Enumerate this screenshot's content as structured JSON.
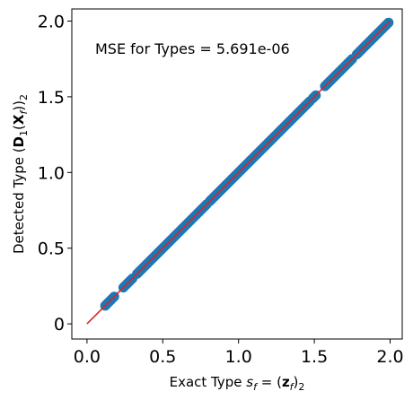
{
  "chart_data": {
    "type": "scatter",
    "xlabel": "Exact Type s_f = (z_f)_2",
    "ylabel": "Detected Type (D_1(X_f))_2",
    "annotation": "MSE for Types = 5.691e-06",
    "xlim": [
      -0.1,
      2.08
    ],
    "ylim": [
      -0.1,
      2.08
    ],
    "x_ticks": [
      0.0,
      0.5,
      1.0,
      1.5,
      2.0
    ],
    "y_ticks": [
      0,
      0.5,
      1.0,
      1.5,
      2.0
    ],
    "x_tick_labels": [
      "0.0",
      "0.5",
      "1.0",
      "1.5",
      "2.0"
    ],
    "y_tick_labels": [
      "0",
      "0.5",
      "1.0",
      "1.5",
      "2.0"
    ],
    "grid": false,
    "reference_line": {
      "from": [
        0.0,
        0.0
      ],
      "to": [
        2.0,
        2.0
      ],
      "color": "#d62728"
    },
    "point_color": "#1f77b4",
    "series": [
      {
        "x": [
          0.12,
          0.13,
          0.14,
          0.15,
          0.16,
          0.17,
          0.18,
          0.24,
          0.25,
          0.26,
          0.27,
          0.28,
          0.29,
          0.3,
          0.33,
          0.34,
          0.35,
          0.36,
          0.37,
          0.38,
          0.39,
          0.4,
          0.41,
          0.42,
          0.43,
          0.44,
          0.45,
          0.46,
          0.47,
          0.48,
          0.49,
          0.5,
          0.51,
          0.52,
          0.53,
          0.54,
          0.55,
          0.56,
          0.57,
          0.58,
          0.59,
          0.6,
          0.61,
          0.62,
          0.63,
          0.64,
          0.65,
          0.66,
          0.67,
          0.68,
          0.69,
          0.7,
          0.71,
          0.72,
          0.73,
          0.74,
          0.75,
          0.76,
          0.77,
          0.78,
          0.79,
          0.81,
          0.82,
          0.83,
          0.84,
          0.85,
          0.86,
          0.87,
          0.88,
          0.89,
          0.9,
          0.91,
          0.92,
          0.93,
          0.94,
          0.95,
          0.96,
          0.97,
          0.98,
          0.99,
          1.0,
          1.01,
          1.02,
          1.03,
          1.04,
          1.05,
          1.06,
          1.07,
          1.08,
          1.09,
          1.1,
          1.11,
          1.12,
          1.13,
          1.14,
          1.15,
          1.16,
          1.17,
          1.18,
          1.19,
          1.2,
          1.21,
          1.22,
          1.23,
          1.24,
          1.25,
          1.26,
          1.27,
          1.28,
          1.29,
          1.3,
          1.31,
          1.32,
          1.33,
          1.34,
          1.35,
          1.36,
          1.37,
          1.38,
          1.39,
          1.4,
          1.41,
          1.42,
          1.43,
          1.44,
          1.45,
          1.46,
          1.47,
          1.49,
          1.5,
          1.51,
          1.57,
          1.58,
          1.59,
          1.6,
          1.61,
          1.62,
          1.63,
          1.64,
          1.65,
          1.66,
          1.67,
          1.68,
          1.69,
          1.7,
          1.71,
          1.72,
          1.73,
          1.74,
          1.75,
          1.78,
          1.79,
          1.8,
          1.81,
          1.82,
          1.83,
          1.84,
          1.85,
          1.86,
          1.87,
          1.88,
          1.89,
          1.9,
          1.91,
          1.92,
          1.93,
          1.94,
          1.95,
          1.96,
          1.97,
          1.98,
          1.99
        ],
        "y": [
          0.12,
          0.13,
          0.14,
          0.15,
          0.16,
          0.17,
          0.18,
          0.24,
          0.25,
          0.26,
          0.27,
          0.28,
          0.29,
          0.3,
          0.33,
          0.34,
          0.35,
          0.36,
          0.37,
          0.38,
          0.39,
          0.4,
          0.41,
          0.42,
          0.43,
          0.44,
          0.45,
          0.46,
          0.47,
          0.48,
          0.49,
          0.5,
          0.51,
          0.52,
          0.53,
          0.54,
          0.55,
          0.56,
          0.57,
          0.58,
          0.59,
          0.6,
          0.61,
          0.62,
          0.63,
          0.64,
          0.65,
          0.66,
          0.67,
          0.68,
          0.69,
          0.7,
          0.71,
          0.72,
          0.73,
          0.74,
          0.75,
          0.76,
          0.77,
          0.78,
          0.79,
          0.81,
          0.82,
          0.83,
          0.84,
          0.85,
          0.86,
          0.87,
          0.88,
          0.89,
          0.9,
          0.91,
          0.92,
          0.93,
          0.94,
          0.95,
          0.96,
          0.97,
          0.98,
          0.99,
          1.0,
          1.01,
          1.02,
          1.03,
          1.04,
          1.05,
          1.06,
          1.07,
          1.08,
          1.09,
          1.1,
          1.11,
          1.12,
          1.13,
          1.14,
          1.15,
          1.16,
          1.17,
          1.18,
          1.19,
          1.2,
          1.21,
          1.22,
          1.23,
          1.24,
          1.25,
          1.26,
          1.27,
          1.28,
          1.29,
          1.3,
          1.31,
          1.32,
          1.33,
          1.34,
          1.35,
          1.36,
          1.37,
          1.38,
          1.39,
          1.4,
          1.41,
          1.42,
          1.43,
          1.44,
          1.45,
          1.46,
          1.47,
          1.49,
          1.5,
          1.51,
          1.57,
          1.58,
          1.59,
          1.6,
          1.61,
          1.62,
          1.63,
          1.64,
          1.65,
          1.66,
          1.67,
          1.68,
          1.69,
          1.7,
          1.71,
          1.72,
          1.73,
          1.74,
          1.75,
          1.78,
          1.79,
          1.8,
          1.81,
          1.82,
          1.83,
          1.84,
          1.85,
          1.86,
          1.87,
          1.88,
          1.89,
          1.9,
          1.91,
          1.92,
          1.93,
          1.94,
          1.95,
          1.96,
          1.97,
          1.98,
          1.99
        ]
      }
    ]
  }
}
